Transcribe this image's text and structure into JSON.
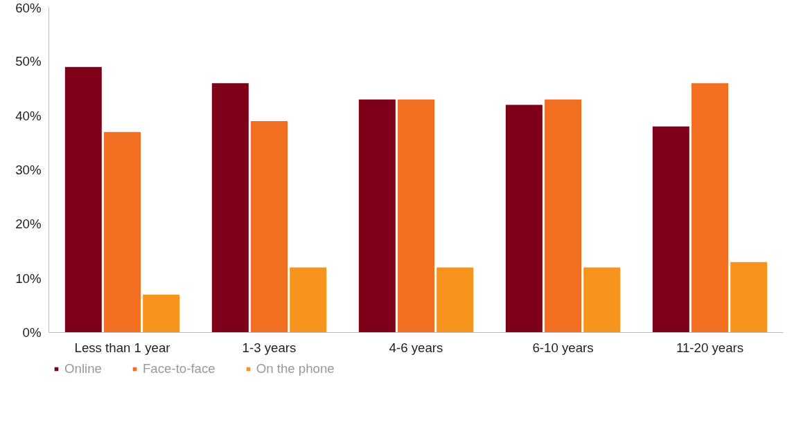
{
  "chart_data": {
    "type": "bar",
    "categories": [
      "Less than 1 year",
      "1-3 years",
      "4-6 years",
      "6-10 years",
      "11-20 years"
    ],
    "series": [
      {
        "name": "Online",
        "color": "#7f0019",
        "values": [
          49,
          46,
          43,
          42,
          38
        ]
      },
      {
        "name": "Face-to-face",
        "color": "#f26e21",
        "values": [
          37,
          39,
          43,
          43,
          46
        ]
      },
      {
        "name": "On the phone",
        "color": "#f7941d",
        "values": [
          7,
          12,
          12,
          12,
          13
        ]
      }
    ],
    "ylim": [
      0,
      60
    ],
    "yticks": [
      {
        "value": 0,
        "label": "0%"
      },
      {
        "value": 10,
        "label": "10%"
      },
      {
        "value": 20,
        "label": "20%"
      },
      {
        "value": 30,
        "label": "30%"
      },
      {
        "value": 40,
        "label": "40%"
      },
      {
        "value": 50,
        "label": "50%"
      },
      {
        "value": 60,
        "label": "60%"
      }
    ],
    "grid": false,
    "legend": "bottom left"
  }
}
